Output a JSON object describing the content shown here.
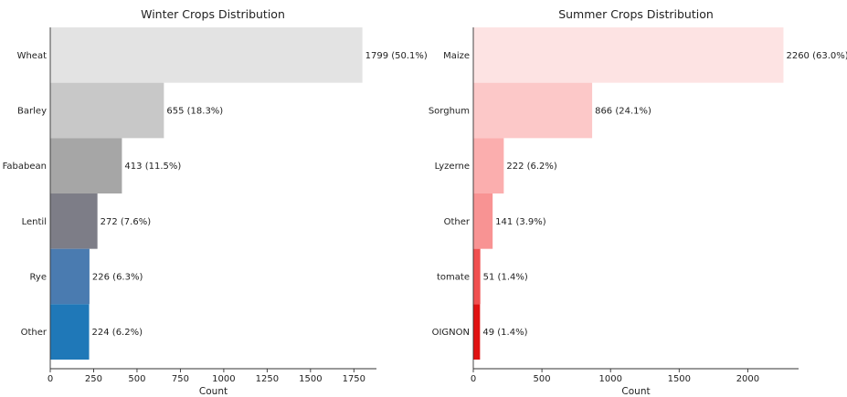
{
  "chart_data": [
    {
      "type": "bar",
      "orientation": "horizontal",
      "title": "Winter Crops Distribution",
      "xlabel": "Count",
      "ylabel": "",
      "categories": [
        "Wheat",
        "Barley",
        "Fababean",
        "Lentil",
        "Rye",
        "Other"
      ],
      "values": [
        1799,
        655,
        413,
        272,
        226,
        224
      ],
      "data_labels": [
        "1799 (50.1%)",
        "655 (18.3%)",
        "413 (11.5%)",
        "272 (7.6%)",
        "226 (6.3%)",
        "224 (6.2%)"
      ],
      "colors": [
        "#e3e3e3",
        "#c8c8c8",
        "#a6a6a6",
        "#7d7d87",
        "#4a7bb0",
        "#1f78b8"
      ],
      "xlim": [
        0,
        1880
      ],
      "xticks": [
        0,
        250,
        500,
        750,
        1000,
        1250,
        1500,
        1750
      ],
      "grid": false
    },
    {
      "type": "bar",
      "orientation": "horizontal",
      "title": "Summer Crops Distribution",
      "xlabel": "Count",
      "ylabel": "",
      "categories": [
        "Maize",
        "Sorghum",
        "Lyzerne",
        "Other",
        "tomate",
        "OIGNON"
      ],
      "values": [
        2260,
        866,
        222,
        141,
        51,
        49
      ],
      "data_labels": [
        "2260 (63.0%)",
        "866 (24.1%)",
        "222 (6.2%)",
        "141 (3.9%)",
        "51 (1.4%)",
        "49 (1.4%)"
      ],
      "colors": [
        "#fde3e3",
        "#fcc8c8",
        "#fbaeae",
        "#f89393",
        "#f05050",
        "#e01212"
      ],
      "xlim": [
        0,
        2370
      ],
      "xticks": [
        0,
        500,
        1000,
        1500,
        2000
      ],
      "grid": false
    }
  ]
}
